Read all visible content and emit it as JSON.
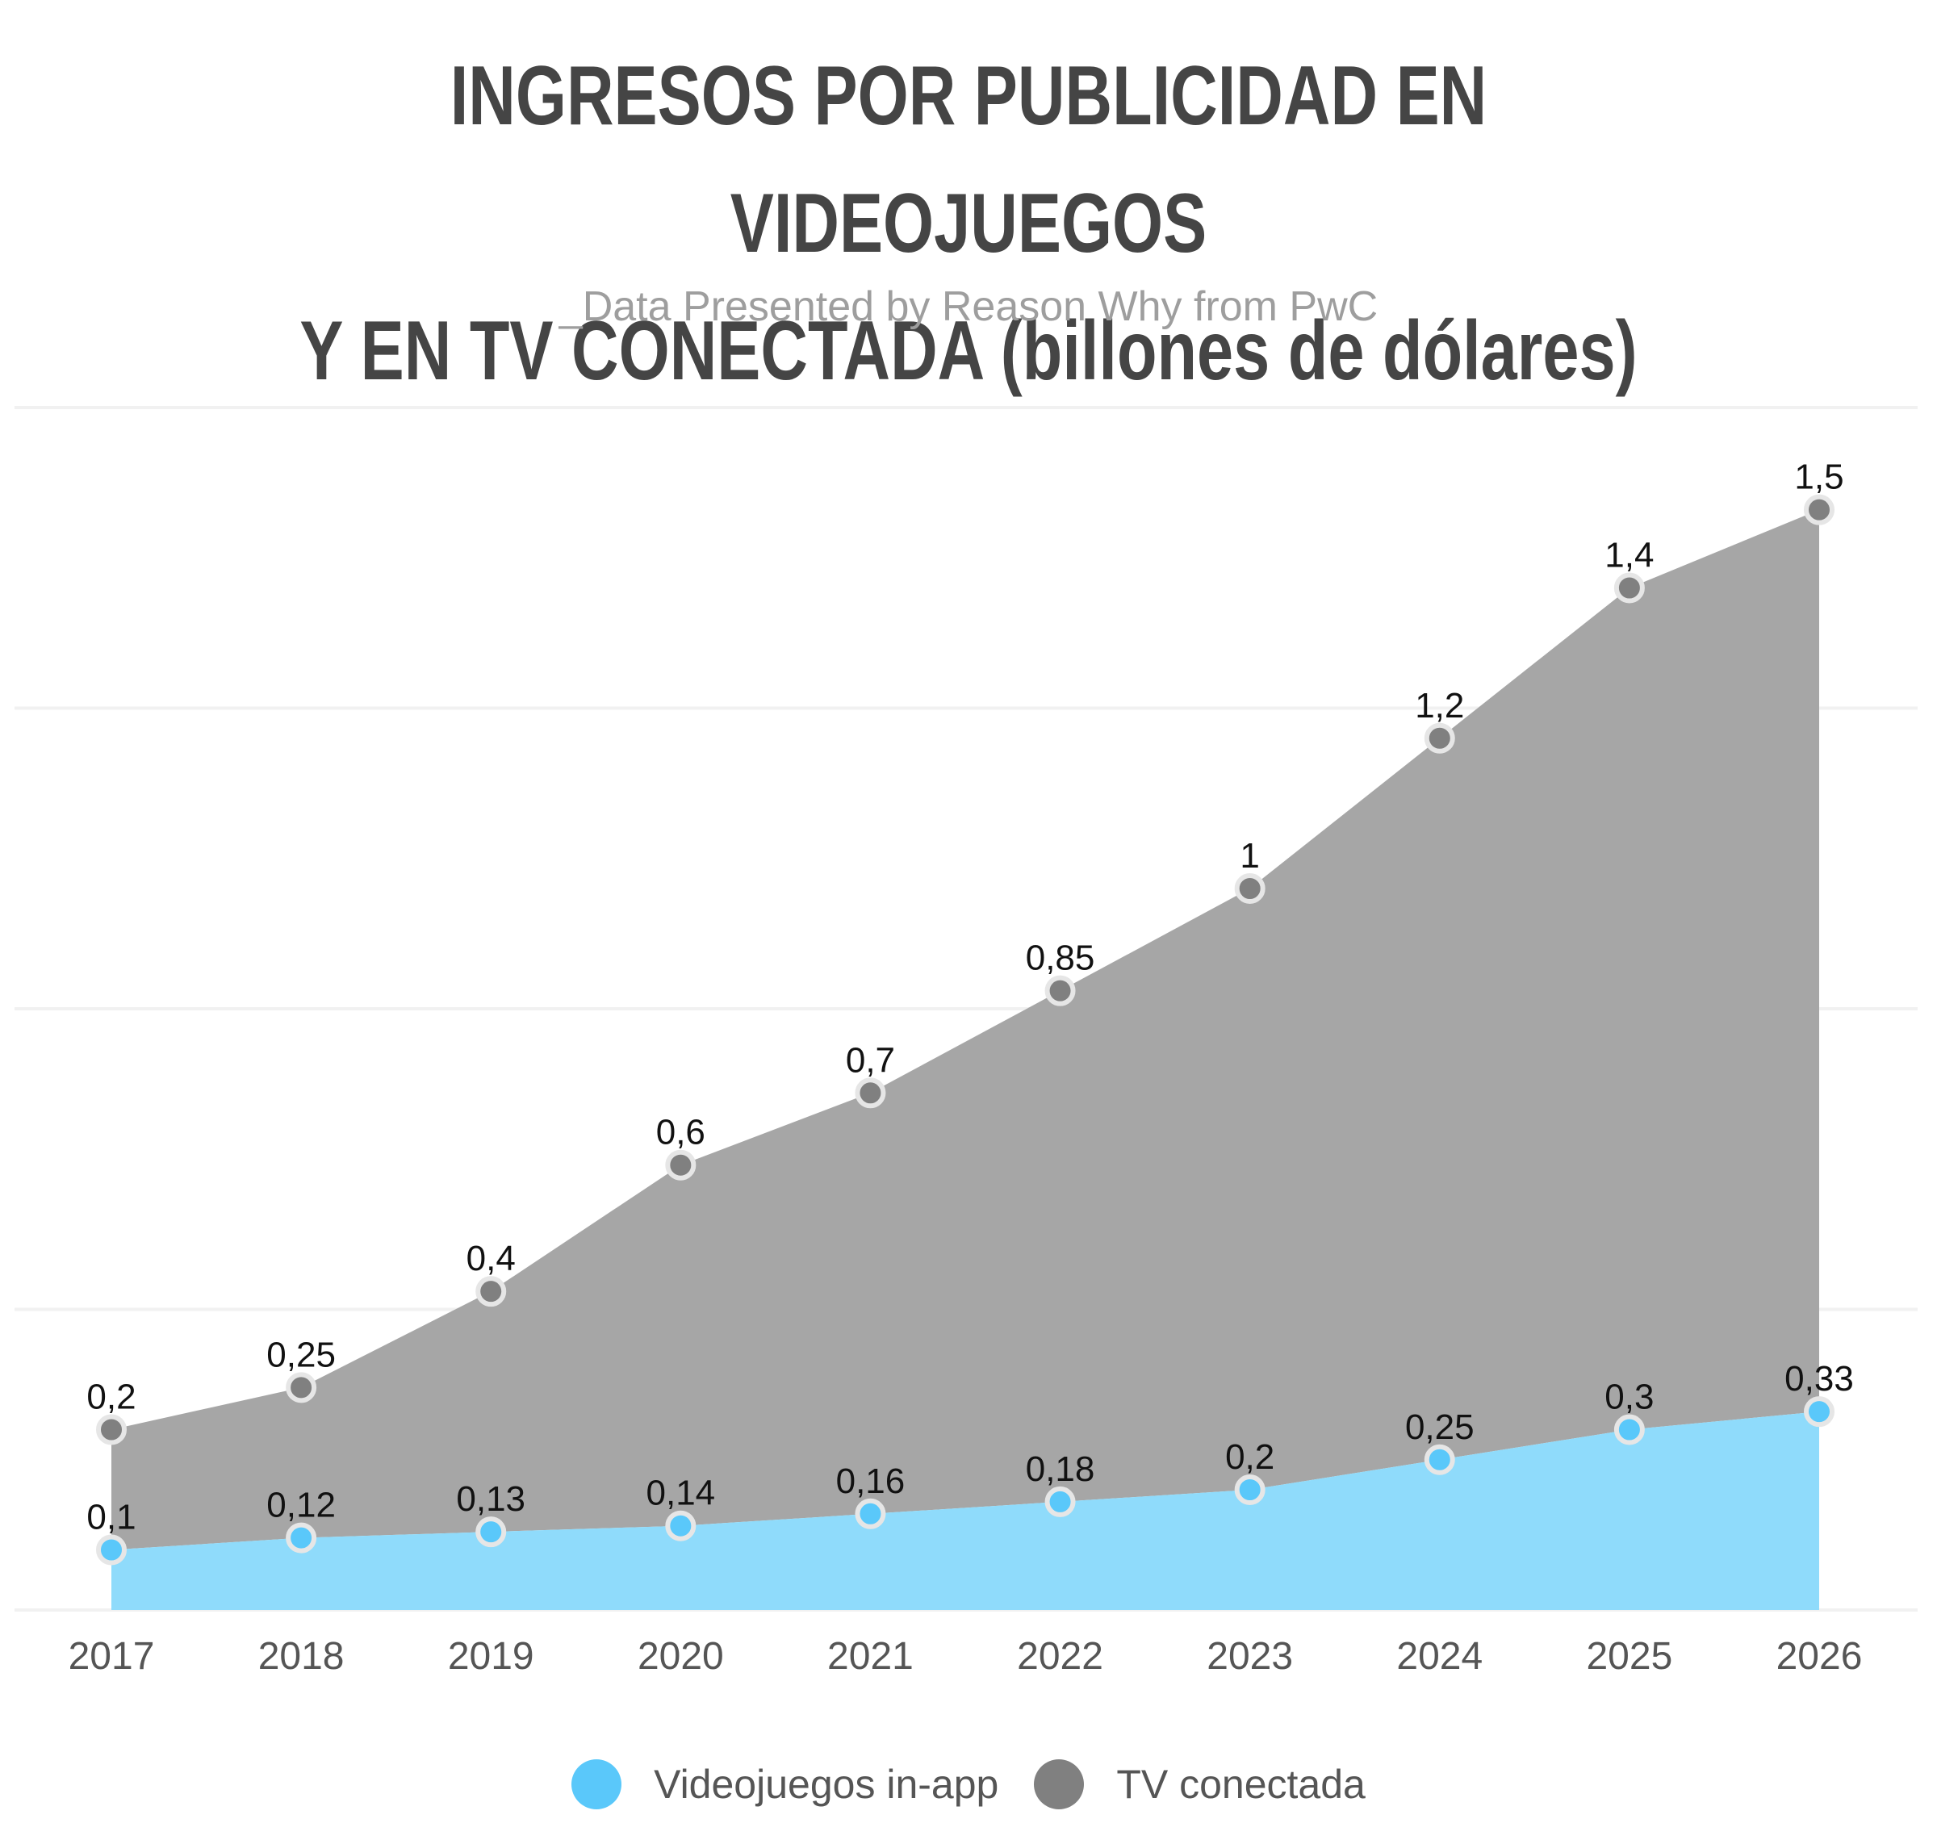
{
  "chart_data": {
    "type": "area",
    "title_lines": [
      "INGRESOS POR PUBLICIDAD EN VIDEOJUEGOS",
      "Y EN TV CONECTADA (billones de dólares)"
    ],
    "subtitle": "_Data Presented by Reason Why from PwC",
    "categories": [
      "2017",
      "2018",
      "2019",
      "2020",
      "2021",
      "2022",
      "2023",
      "2024",
      "2025",
      "2026"
    ],
    "series": [
      {
        "name": "Videojuegos in-app",
        "values": [
          0.1,
          0.12,
          0.13,
          0.14,
          0.16,
          0.18,
          0.2,
          0.25,
          0.3,
          0.33
        ],
        "labels": [
          "0,1",
          "0,12",
          "0,13",
          "0,14",
          "0,16",
          "0,18",
          "0,2",
          "0,25",
          "0,3",
          "0,33"
        ],
        "color": "#5ac8fa",
        "fill": "#8fdbfb"
      },
      {
        "name": "TV conectada",
        "values": [
          0.2,
          0.25,
          0.4,
          0.6,
          0.7,
          0.85,
          1,
          1.2,
          1.4,
          1.5
        ],
        "labels": [
          "0,2",
          "0,25",
          "0,4",
          "0,6",
          "0,7",
          "0,85",
          "1",
          "1,2",
          "1,4",
          "1,5"
        ],
        "color": "#808080",
        "fill": "#a6a6a6",
        "stacked_on": "Videojuegos in-app"
      }
    ],
    "stacked": true,
    "ylim": [
      0,
      2
    ],
    "grid": true,
    "legend_position": "bottom"
  }
}
